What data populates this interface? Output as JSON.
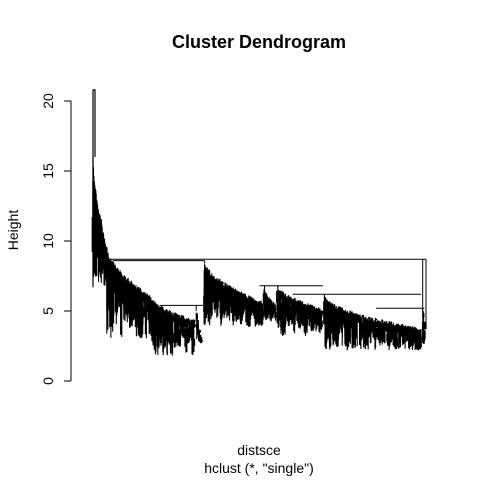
{
  "chart_data": {
    "type": "dendrogram",
    "title": "Cluster Dendrogram",
    "xlabel": "distsce",
    "sublabel": "hclust (*, \"single\")",
    "ylabel": "Height",
    "ylim": [
      0,
      21
    ],
    "yticks": [
      0,
      5,
      10,
      15,
      20
    ],
    "ytick_labels": [
      "0",
      "5",
      "10",
      "15",
      "20"
    ],
    "linkage": "single",
    "leaf_count_approx": 1000,
    "top_merge_height": 20.8,
    "main_merge_height": 8.7,
    "clusters": [
      {
        "id": "A",
        "x_from": 0.0,
        "x_to": 0.04,
        "merge_height": 20.8,
        "chain_start": 16.0,
        "chain_end": 9.5,
        "leaf_min": 6.7,
        "leaf_max": 10.5
      },
      {
        "id": "B",
        "x_from": 0.04,
        "x_to": 0.17,
        "merge_height": 8.6,
        "chain_start": 9.5,
        "chain_end": 6.0,
        "leaf_min": 3.0,
        "leaf_max": 8.0
      },
      {
        "id": "C",
        "x_from": 0.17,
        "x_to": 0.305,
        "merge_height": 6.1,
        "chain_start": 6.0,
        "chain_end": 4.2,
        "leaf_min": 1.8,
        "leaf_max": 5.8
      },
      {
        "id": "D",
        "x_from": 0.31,
        "x_to": 0.33,
        "merge_height": 5.4,
        "chain_start": 5.0,
        "chain_end": 2.7,
        "leaf_min": 2.7,
        "leaf_max": 4.5
      },
      {
        "id": "E",
        "x_from": 0.335,
        "x_to": 0.51,
        "merge_height": 8.6,
        "chain_start": 8.4,
        "chain_end": 5.5,
        "leaf_min": 3.8,
        "leaf_max": 7.5
      },
      {
        "id": "F",
        "x_from": 0.515,
        "x_to": 0.55,
        "merge_height": 6.8,
        "chain_start": 6.5,
        "chain_end": 5.3,
        "leaf_min": 4.2,
        "leaf_max": 6.0
      },
      {
        "id": "G",
        "x_from": 0.555,
        "x_to": 0.69,
        "merge_height": 6.8,
        "chain_start": 6.7,
        "chain_end": 5.0,
        "leaf_min": 3.2,
        "leaf_max": 6.0
      },
      {
        "id": "H",
        "x_from": 0.695,
        "x_to": 0.985,
        "merge_height": 6.2,
        "chain_start": 5.9,
        "chain_end": 3.6,
        "leaf_min": 2.2,
        "leaf_max": 5.2
      },
      {
        "id": "I",
        "x_from": 0.99,
        "x_to": 1.0,
        "merge_height": 8.7,
        "chain_start": 5.1,
        "chain_end": 3.8,
        "leaf_min": 2.6,
        "leaf_max": 4.5
      }
    ],
    "top_links": [
      {
        "height": 8.7,
        "x_from": 0.04,
        "x_to": 1.0
      },
      {
        "height": 8.6,
        "x_from": 0.06,
        "x_to": 0.335
      },
      {
        "height": 6.8,
        "x_from": 0.5,
        "x_to": 0.69
      },
      {
        "height": 6.2,
        "x_from": 0.6,
        "x_to": 0.985
      },
      {
        "height": 5.2,
        "x_from": 0.85,
        "x_to": 0.995
      },
      {
        "height": 5.4,
        "x_from": 0.2,
        "x_to": 0.33
      }
    ]
  }
}
